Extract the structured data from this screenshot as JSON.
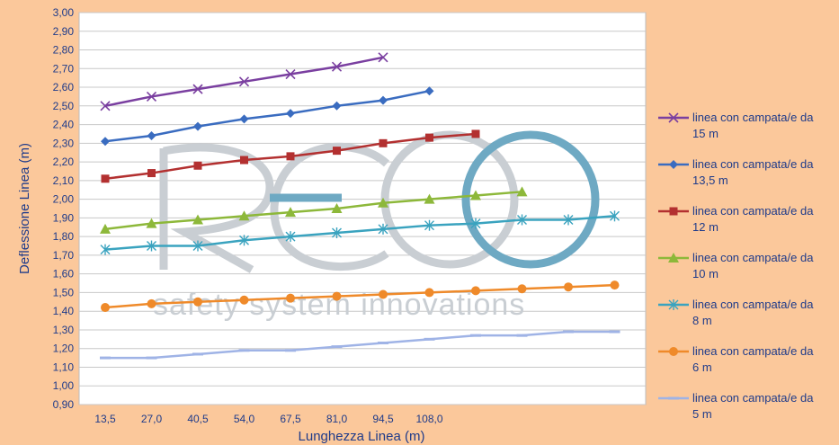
{
  "chart_data": {
    "type": "line",
    "xlabel": "Lunghezza  Linea (m)",
    "ylabel": "Deflessione Linea (m)",
    "ylim": [
      0.9,
      3.0
    ],
    "ystep": 0.1,
    "x_tick_labels": [
      "13,5",
      "27,0",
      "40,5",
      "54,0",
      "67,5",
      "81,0",
      "94,5",
      "108,0"
    ],
    "grid": true,
    "legend_position": "right",
    "series": [
      {
        "name": "linea con campata/e da 15 m",
        "color": "#7a3fa0",
        "marker": "x",
        "values": [
          2.5,
          2.55,
          2.59,
          2.63,
          2.67,
          2.71,
          2.76
        ]
      },
      {
        "name": "linea con campata/e da 13,5 m",
        "color": "#3a6cc0",
        "marker": "diamond",
        "values": [
          2.31,
          2.34,
          2.39,
          2.43,
          2.46,
          2.5,
          2.53,
          2.58
        ]
      },
      {
        "name": "linea con campata/e da 12 m",
        "color": "#b33030",
        "marker": "square",
        "values": [
          2.11,
          2.14,
          2.18,
          2.21,
          2.23,
          2.26,
          2.3,
          2.33,
          2.35
        ]
      },
      {
        "name": "linea con campata/e da 10 m",
        "color": "#8db83a",
        "marker": "triangle",
        "values": [
          1.84,
          1.87,
          1.89,
          1.91,
          1.93,
          1.95,
          1.98,
          2.0,
          2.02,
          2.04
        ]
      },
      {
        "name": "linea con campata/e da 8 m",
        "color": "#3aa3bf",
        "marker": "star",
        "values": [
          1.73,
          1.75,
          1.75,
          1.78,
          1.8,
          1.82,
          1.84,
          1.86,
          1.87,
          1.89,
          1.89,
          1.91
        ]
      },
      {
        "name": "linea con campata/e da 6 m",
        "color": "#ef8a2a",
        "marker": "circle",
        "values": [
          1.42,
          1.44,
          1.45,
          1.46,
          1.47,
          1.48,
          1.49,
          1.5,
          1.51,
          1.52,
          1.53,
          1.54
        ]
      },
      {
        "name": "linea con campata/e da 5 m",
        "color": "#9fb3e6",
        "marker": "dash",
        "values": [
          1.15,
          1.15,
          1.17,
          1.19,
          1.19,
          1.21,
          1.23,
          1.25,
          1.27,
          1.27,
          1.29,
          1.29
        ]
      }
    ]
  },
  "watermark": {
    "letters": [
      "R",
      "E",
      "O"
    ],
    "tagline": "safety  system  innovations",
    "grey": "#c9ced3",
    "accent": "#6ea9c3"
  },
  "colors": {
    "background": "#fbc89b",
    "plot_area": "#ffffff",
    "grid": "#c8c8c8",
    "text": "#1f3b8a"
  }
}
